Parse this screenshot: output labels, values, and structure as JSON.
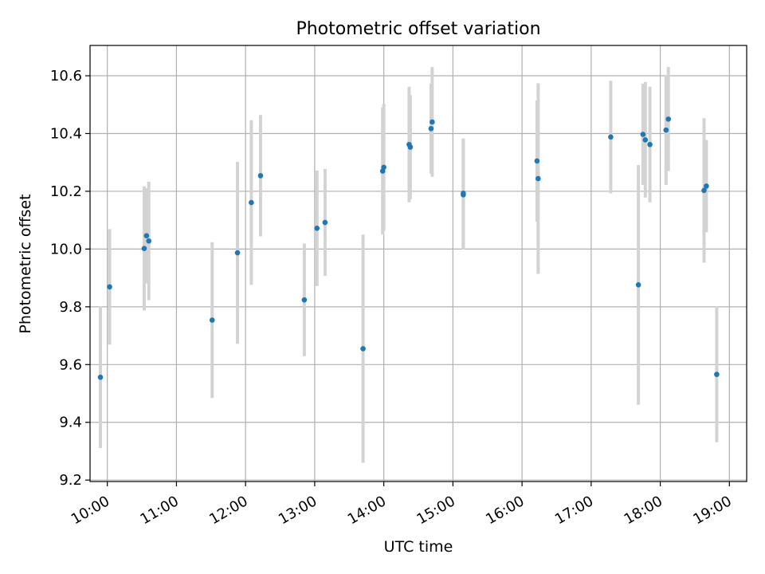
{
  "chart_data": {
    "type": "scatter",
    "title": "Photometric offset variation",
    "xlabel": "UTC time",
    "ylabel": "Photometric offset",
    "x_axis": {
      "kind": "time",
      "range": [
        "09:45",
        "19:15"
      ],
      "ticks": [
        "10:00",
        "11:00",
        "12:00",
        "13:00",
        "14:00",
        "15:00",
        "16:00",
        "17:00",
        "18:00",
        "19:00"
      ]
    },
    "y_axis": {
      "range": [
        9.195,
        10.705
      ],
      "ticks": [
        "9.2",
        "9.4",
        "9.6",
        "9.8",
        "10.0",
        "10.2",
        "10.4",
        "10.6"
      ]
    },
    "grid": true,
    "marker_color": "#1f77b4",
    "errorbar_color": "#d3d3d3",
    "points": [
      {
        "t": "09:54",
        "y": 9.556,
        "err": 0.245
      },
      {
        "t": "10:02",
        "y": 9.869,
        "err": 0.2
      },
      {
        "t": "10:32",
        "y": 10.002,
        "err": 0.215
      },
      {
        "t": "10:34",
        "y": 10.046,
        "err": 0.165
      },
      {
        "t": "10:36",
        "y": 10.028,
        "err": 0.205
      },
      {
        "t": "11:31",
        "y": 9.754,
        "err": 0.27
      },
      {
        "t": "11:53",
        "y": 9.987,
        "err": 0.315
      },
      {
        "t": "12:05",
        "y": 10.161,
        "err": 0.285
      },
      {
        "t": "12:13",
        "y": 10.254,
        "err": 0.21
      },
      {
        "t": "12:51",
        "y": 9.824,
        "err": 0.195
      },
      {
        "t": "13:02",
        "y": 10.072,
        "err": 0.2
      },
      {
        "t": "13:09",
        "y": 10.092,
        "err": 0.185
      },
      {
        "t": "13:42",
        "y": 9.655,
        "err": 0.395
      },
      {
        "t": "13:59",
        "y": 10.27,
        "err": 0.22
      },
      {
        "t": "14:00",
        "y": 10.283,
        "err": 0.22
      },
      {
        "t": "14:22",
        "y": 10.362,
        "err": 0.2
      },
      {
        "t": "14:23",
        "y": 10.353,
        "err": 0.18
      },
      {
        "t": "14:41",
        "y": 10.417,
        "err": 0.155
      },
      {
        "t": "14:42",
        "y": 10.44,
        "err": 0.19
      },
      {
        "t": "15:09",
        "y": 10.188,
        "err": 0.19
      },
      {
        "t": "15:09",
        "y": 10.193,
        "err": 0.19
      },
      {
        "t": "16:13",
        "y": 10.305,
        "err": 0.21
      },
      {
        "t": "16:14",
        "y": 10.244,
        "err": 0.33
      },
      {
        "t": "17:17",
        "y": 10.388,
        "err": 0.195
      },
      {
        "t": "17:41",
        "y": 9.876,
        "err": 0.415
      },
      {
        "t": "17:45",
        "y": 10.397,
        "err": 0.175
      },
      {
        "t": "17:47",
        "y": 10.378,
        "err": 0.2
      },
      {
        "t": "17:51",
        "y": 10.362,
        "err": 0.2
      },
      {
        "t": "18:05",
        "y": 10.412,
        "err": 0.19
      },
      {
        "t": "18:07",
        "y": 10.45,
        "err": 0.18
      },
      {
        "t": "18:38",
        "y": 10.203,
        "err": 0.25
      },
      {
        "t": "18:40",
        "y": 10.218,
        "err": 0.16
      },
      {
        "t": "18:49",
        "y": 9.566,
        "err": 0.235
      }
    ]
  }
}
